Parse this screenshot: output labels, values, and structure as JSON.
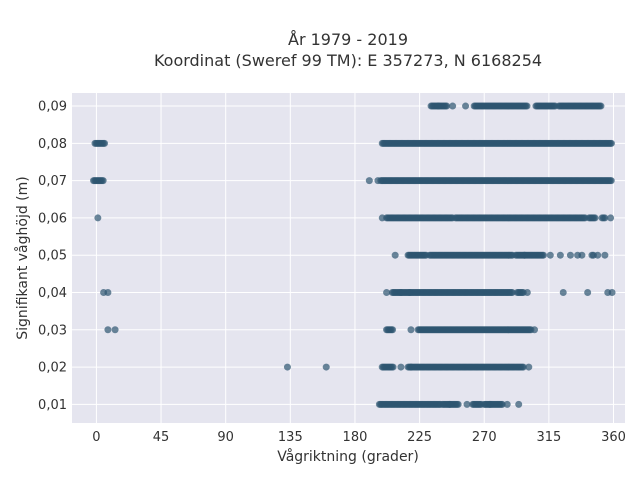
{
  "chart_data": {
    "type": "scatter",
    "title_line1": "År 1979 - 2019",
    "title_line2": "Koordinat (Sweref 99 TM): E 357273, N 6168254",
    "xlabel": "Vågriktning (grader)",
    "ylabel": "Signifikant våghöjd (m)",
    "xlim": [
      -17,
      368
    ],
    "ylim": [
      0.005,
      0.0935
    ],
    "xticks": [
      0,
      45,
      90,
      135,
      180,
      225,
      270,
      315,
      360
    ],
    "xtick_labels": [
      "0",
      "45",
      "90",
      "135",
      "180",
      "225",
      "270",
      "315",
      "360"
    ],
    "yticks": [
      0.01,
      0.02,
      0.03,
      0.04,
      0.05,
      0.06,
      0.07,
      0.08,
      0.09
    ],
    "ytick_labels": [
      "0,01",
      "0,02",
      "0,03",
      "0,04",
      "0,05",
      "0,06",
      "0,07",
      "0,08",
      "0,09"
    ],
    "grid": true,
    "marker_color": "#2e5570",
    "background_color": "#e5e5ef",
    "bands": [
      {
        "y": 0.01,
        "ranges": [
          [
            197,
            240
          ],
          [
            241,
            252
          ],
          [
            262,
            268
          ],
          [
            270,
            283
          ]
        ],
        "points": [
          246,
          258,
          274,
          286,
          294
        ]
      },
      {
        "y": 0.02,
        "ranges": [
          [
            199,
            207
          ],
          [
            217,
            298
          ]
        ],
        "points": [
          133,
          160,
          212,
          219,
          301
        ]
      },
      {
        "y": 0.03,
        "ranges": [
          [
            202,
            207
          ],
          [
            224,
            303
          ]
        ],
        "points": [
          8,
          13,
          219,
          305
        ]
      },
      {
        "y": 0.04,
        "ranges": [
          [
            206,
            290
          ],
          [
            293,
            298
          ]
        ],
        "points": [
          5,
          8,
          202,
          212,
          218,
          300,
          325,
          342,
          356,
          359
        ]
      },
      {
        "y": 0.05,
        "ranges": [
          [
            217,
            230
          ],
          [
            232,
            290
          ],
          [
            292,
            312
          ]
        ],
        "points": [
          208,
          298,
          316,
          323,
          330,
          335,
          338,
          345,
          346,
          349,
          354
        ]
      },
      {
        "y": 0.06,
        "ranges": [
          [
            202,
            248
          ],
          [
            250,
            341
          ],
          [
            343,
            348
          ]
        ],
        "points": [
          1,
          199,
          352,
          353,
          354,
          358
        ]
      },
      {
        "y": 0.07,
        "ranges": [
          [
            -2,
            5
          ],
          [
            198,
            359
          ]
        ],
        "points": [
          190,
          196
        ]
      },
      {
        "y": 0.08,
        "ranges": [
          [
            -1,
            6
          ],
          [
            199,
            359
          ]
        ],
        "points": []
      },
      {
        "y": 0.09,
        "ranges": [
          [
            233,
            244
          ],
          [
            263,
            300
          ],
          [
            306,
            320
          ],
          [
            322,
            352
          ]
        ],
        "points": [
          238,
          248,
          257
        ]
      }
    ]
  }
}
